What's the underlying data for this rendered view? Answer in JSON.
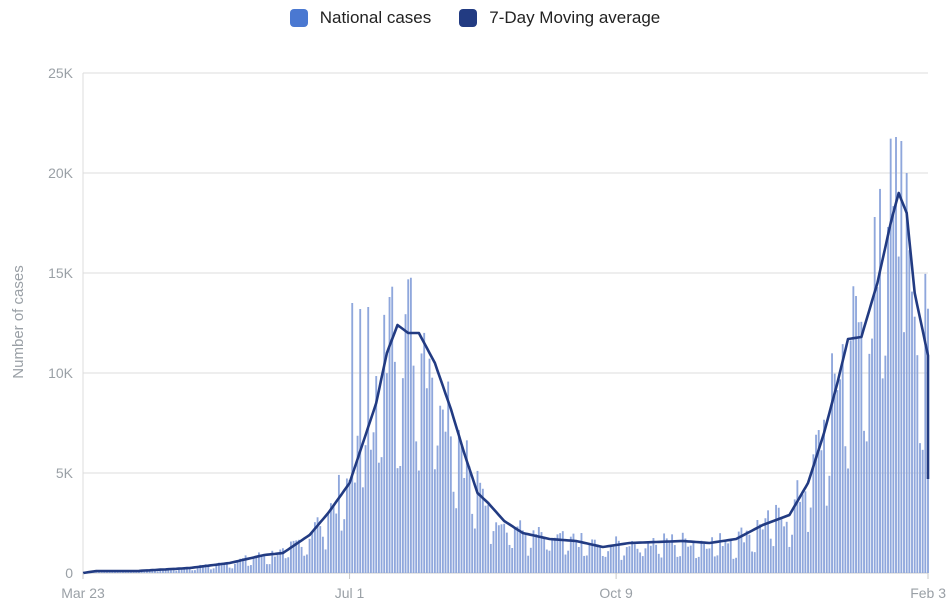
{
  "legend": {
    "bars_label": "National cases",
    "line_label": "7-Day Moving average"
  },
  "colors": {
    "bars": "#8fa7dc",
    "bars_swatch": "#4a78d1",
    "line": "#223b82",
    "grid": "#dcdcdc",
    "axis": "#c8c8c8"
  },
  "chart_data": {
    "type": "bar",
    "title": "",
    "xlabel": "",
    "ylabel": "Number of cases",
    "ylim": [
      0,
      25000
    ],
    "yticks": [
      0,
      5000,
      10000,
      15000,
      20000,
      25000
    ],
    "ytick_labels": [
      "0",
      "5K",
      "10K",
      "15K",
      "20K",
      "25K"
    ],
    "xticks": [
      {
        "day": 0,
        "label": "Mar 23"
      },
      {
        "day": 100,
        "label": "Jul 1"
      },
      {
        "day": 200,
        "label": "Oct 9"
      },
      {
        "day": 317,
        "label": "Feb 3"
      }
    ],
    "grid": true,
    "legend_position": "top-center",
    "x_start": "2020-03-23",
    "x_end": "2021-02-03",
    "moving_average_keyframes": [
      [
        0,
        0
      ],
      [
        5,
        100
      ],
      [
        20,
        100
      ],
      [
        40,
        250
      ],
      [
        55,
        500
      ],
      [
        68,
        900
      ],
      [
        75,
        1000
      ],
      [
        85,
        1900
      ],
      [
        92,
        3000
      ],
      [
        100,
        4500
      ],
      [
        105,
        6500
      ],
      [
        110,
        8500
      ],
      [
        114,
        11000
      ],
      [
        118,
        12400
      ],
      [
        122,
        12000
      ],
      [
        126,
        12000
      ],
      [
        132,
        10500
      ],
      [
        138,
        8200
      ],
      [
        143,
        6000
      ],
      [
        148,
        4000
      ],
      [
        152,
        3500
      ],
      [
        158,
        2600
      ],
      [
        165,
        2000
      ],
      [
        175,
        1700
      ],
      [
        185,
        1600
      ],
      [
        195,
        1300
      ],
      [
        205,
        1500
      ],
      [
        215,
        1550
      ],
      [
        225,
        1600
      ],
      [
        235,
        1500
      ],
      [
        245,
        1700
      ],
      [
        255,
        2400
      ],
      [
        265,
        2900
      ],
      [
        272,
        4500
      ],
      [
        278,
        7000
      ],
      [
        283,
        9500
      ],
      [
        287,
        11700
      ],
      [
        292,
        11800
      ],
      [
        298,
        14500
      ],
      [
        303,
        17500
      ],
      [
        306,
        19000
      ],
      [
        309,
        18000
      ],
      [
        312,
        14000
      ],
      [
        316,
        11500
      ],
      [
        320,
        9000
      ],
      [
        324,
        6500
      ],
      [
        328,
        4700
      ]
    ],
    "bar_peaks": [
      [
        101,
        13500
      ],
      [
        104,
        13200
      ],
      [
        107,
        13300
      ],
      [
        115,
        13800
      ],
      [
        297,
        17800
      ],
      [
        305,
        21800
      ],
      [
        307,
        21600
      ],
      [
        309,
        20000
      ]
    ]
  }
}
